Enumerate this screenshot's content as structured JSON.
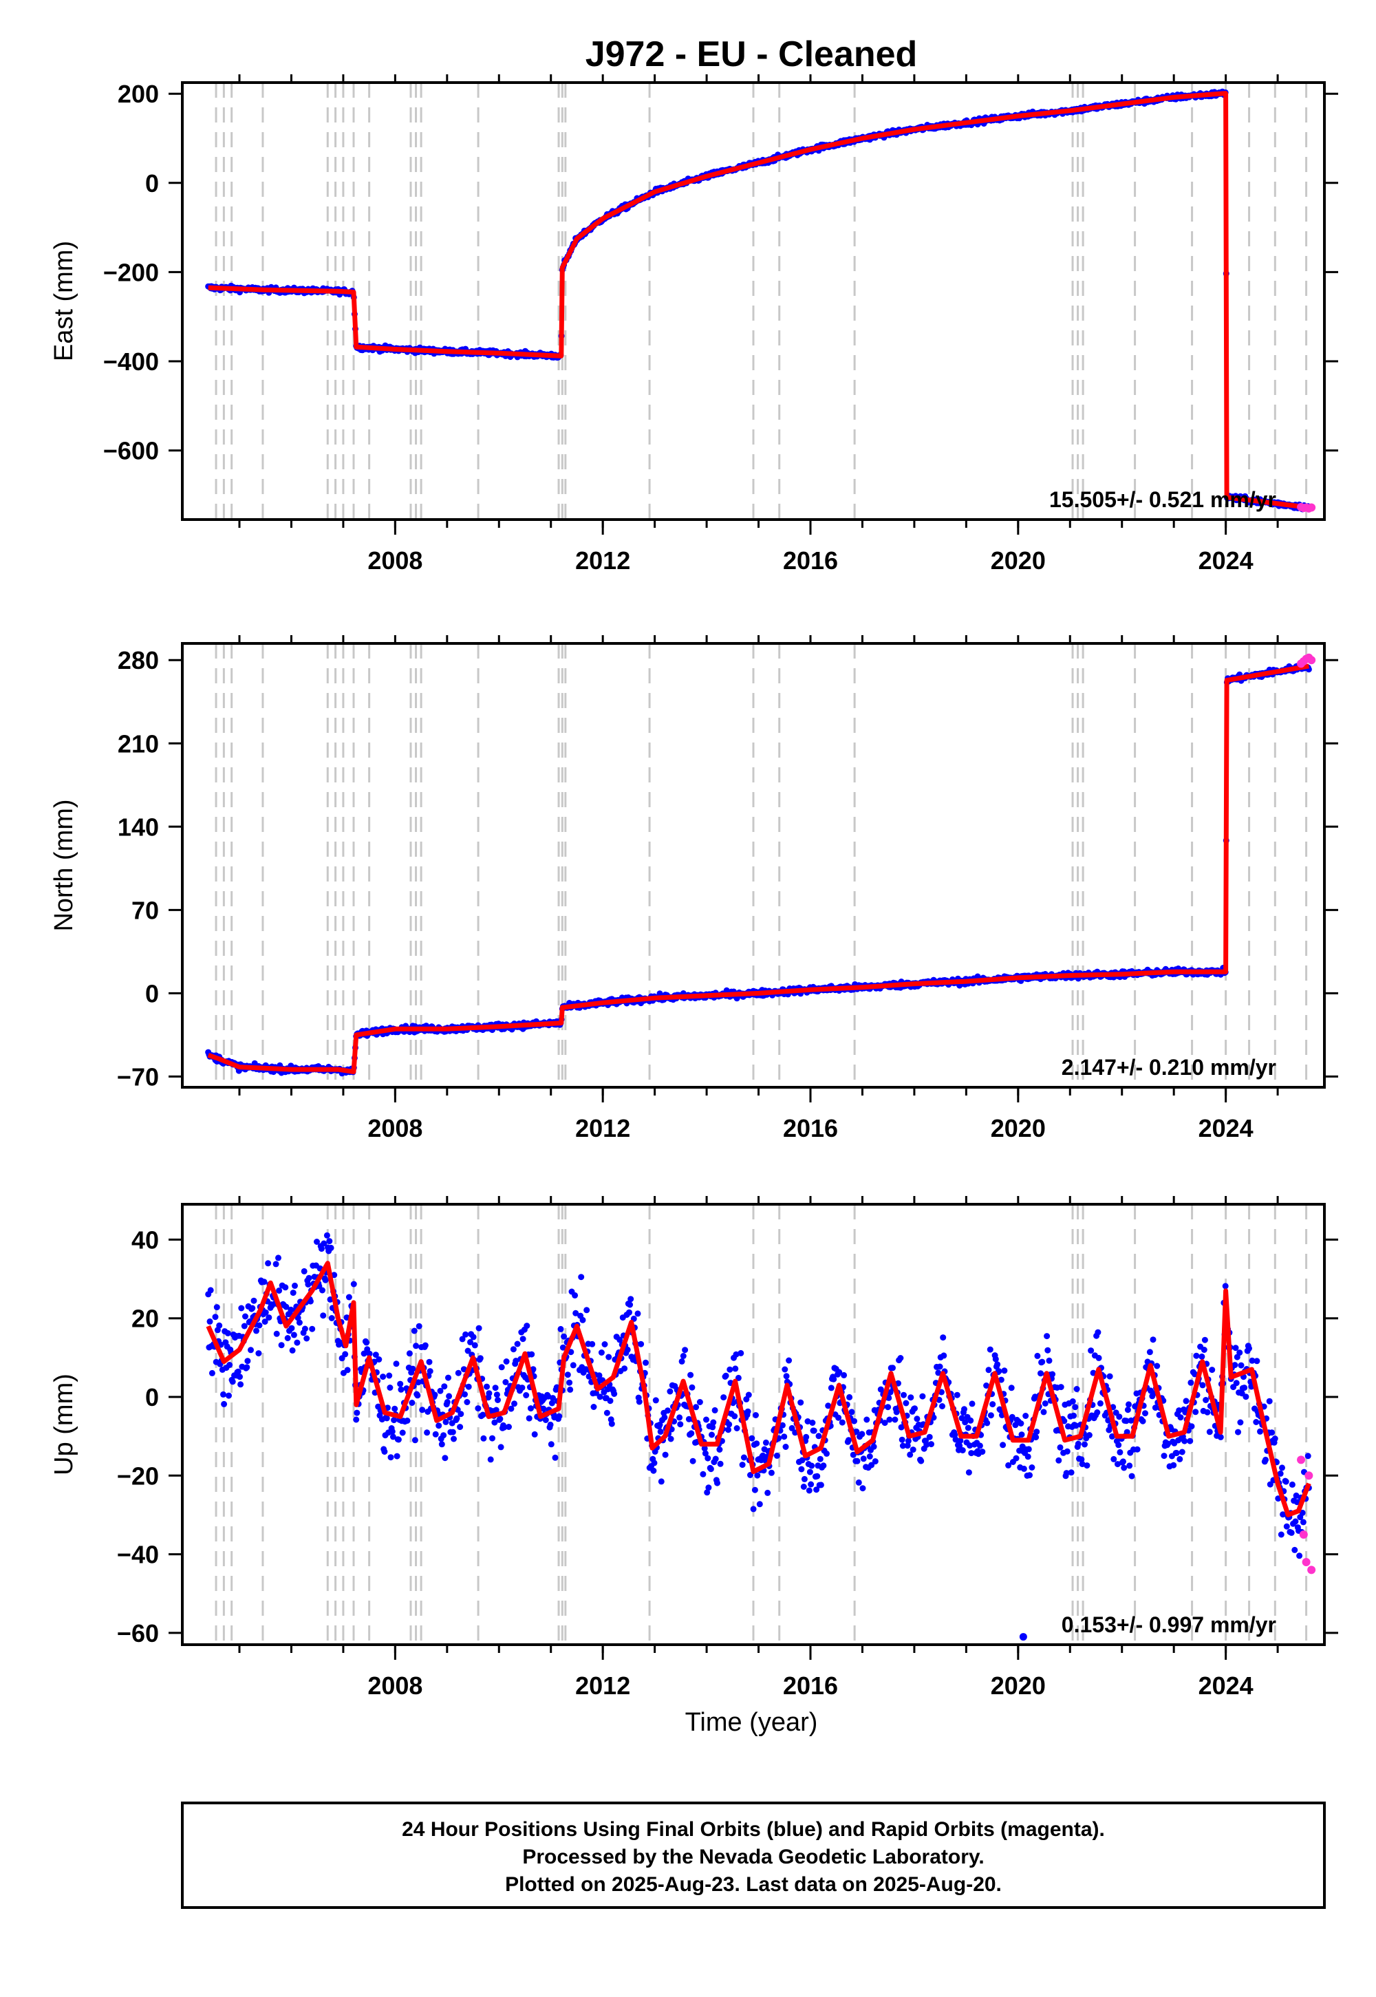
{
  "title": "J972  - EU - Cleaned",
  "xlabel": "Time (year)",
  "colors": {
    "final": "#0000ff",
    "rapid": "#ff33cc",
    "model": "#ff0000",
    "events": "#c8c8c8"
  },
  "chart_data": [
    {
      "type": "scatter",
      "panel": "east",
      "ylabel": "East (mm)",
      "rate": "15.505+/- 0.521 mm/yr",
      "xlim": [
        2003.9,
        2025.9
      ],
      "ylim": [
        -755,
        225
      ],
      "x_ticks": [
        "2008",
        "2012",
        "2016",
        "2020",
        "2024"
      ],
      "x_tick_values": [
        2008,
        2012,
        2016,
        2020,
        2024
      ],
      "y_ticks": [
        "200",
        "0",
        "−200",
        "−400",
        "−600"
      ],
      "y_tick_values": [
        200,
        0,
        -200,
        -400,
        -600
      ],
      "series": [
        {
          "type": "line",
          "x": [
            2004.4,
            2005.5,
            2006.9,
            2007.2,
            2007.25,
            2008.0,
            2009.0,
            2010.0,
            2011.2,
            2011.22,
            2011.5,
            2012.0,
            2013.0,
            2014.0,
            2015.0,
            2016.0,
            2017.0,
            2018.0,
            2019.0,
            2020.0,
            2021.0,
            2022.0,
            2023.0,
            2024.0,
            2024.02,
            2025.6
          ],
          "y": [
            -235,
            -240,
            -243,
            -245,
            -368,
            -373,
            -378,
            -382,
            -388,
            -190,
            -125,
            -80,
            -20,
            15,
            45,
            75,
            100,
            120,
            135,
            150,
            162,
            177,
            192,
            201,
            -705,
            -728
          ]
        },
        {
          "type": "rapid",
          "x": [
            2025.45,
            2025.5,
            2025.55,
            2025.6,
            2025.65
          ],
          "y": [
            -727,
            -729,
            -728,
            -730,
            -728
          ]
        }
      ]
    },
    {
      "type": "scatter",
      "panel": "north",
      "ylabel": "North (mm)",
      "rate": "2.147+/- 0.210 mm/yr",
      "xlim": [
        2003.9,
        2025.9
      ],
      "ylim": [
        -79,
        294
      ],
      "x_ticks": [
        "2008",
        "2012",
        "2016",
        "2020",
        "2024"
      ],
      "x_tick_values": [
        2008,
        2012,
        2016,
        2020,
        2024
      ],
      "y_ticks": [
        "280",
        "210",
        "140",
        "70",
        "0",
        "−70"
      ],
      "y_tick_values": [
        280,
        210,
        140,
        70,
        0,
        -70
      ],
      "series": [
        {
          "type": "line",
          "x": [
            2004.4,
            2004.6,
            2005.0,
            2006.0,
            2006.9,
            2007.2,
            2007.25,
            2008.0,
            2009.0,
            2010.0,
            2011.2,
            2011.22,
            2012.0,
            2013.0,
            2014.0,
            2015.0,
            2016.0,
            2017.0,
            2018.0,
            2019.0,
            2020.0,
            2021.0,
            2022.0,
            2023.0,
            2024.0,
            2024.02,
            2025.6
          ],
          "y": [
            -52,
            -55,
            -62,
            -64,
            -64,
            -66,
            -35,
            -30,
            -30,
            -28,
            -25,
            -12,
            -8,
            -4,
            -2,
            0,
            3,
            5,
            8,
            10,
            13,
            15,
            16,
            18,
            18,
            263,
            275
          ]
        },
        {
          "type": "rapid",
          "x": [
            2025.45,
            2025.5,
            2025.55,
            2025.6,
            2025.65
          ],
          "y": [
            277,
            279,
            281,
            282,
            280
          ]
        }
      ]
    },
    {
      "type": "scatter",
      "panel": "up",
      "ylabel": "Up (mm)",
      "rate": "0.153+/- 0.997 mm/yr",
      "xlim": [
        2003.9,
        2025.9
      ],
      "ylim": [
        -63,
        49
      ],
      "x_ticks": [
        "2008",
        "2012",
        "2016",
        "2020",
        "2024"
      ],
      "x_tick_values": [
        2008,
        2012,
        2016,
        2020,
        2024
      ],
      "y_ticks": [
        "40",
        "20",
        "0",
        "−20",
        "−40",
        "−60"
      ],
      "y_tick_values": [
        40,
        20,
        0,
        -20,
        -40,
        -60
      ],
      "series": [
        {
          "type": "line",
          "x": [
            2004.4,
            2004.7,
            2005.0,
            2005.4,
            2005.6,
            2005.9,
            2006.4,
            2006.7,
            2006.9,
            2007.05,
            2007.2,
            2007.25,
            2007.5,
            2007.8,
            2008.1,
            2008.5,
            2008.8,
            2009.1,
            2009.5,
            2009.8,
            2010.1,
            2010.5,
            2010.8,
            2011.15,
            2011.25,
            2011.5,
            2011.9,
            2012.2,
            2012.55,
            2012.8,
            2012.95,
            2013.2,
            2013.55,
            2013.9,
            2014.2,
            2014.55,
            2014.9,
            2015.2,
            2015.55,
            2015.9,
            2016.2,
            2016.55,
            2016.9,
            2017.2,
            2017.55,
            2017.9,
            2018.2,
            2018.55,
            2018.9,
            2019.2,
            2019.55,
            2019.9,
            2020.2,
            2020.55,
            2020.9,
            2021.2,
            2021.55,
            2021.9,
            2022.2,
            2022.55,
            2022.9,
            2023.2,
            2023.55,
            2023.9,
            2024.0,
            2024.1,
            2024.3,
            2024.5,
            2024.7,
            2025.0,
            2025.2,
            2025.4,
            2025.6
          ],
          "y": [
            18,
            9,
            12,
            22,
            29,
            18,
            27,
            34,
            20,
            13,
            24,
            -2,
            10,
            -4,
            -5,
            9,
            -6,
            -4,
            10,
            -5,
            -4,
            11,
            -5,
            -3,
            10,
            18,
            2,
            5,
            19,
            2,
            -13,
            -10,
            4,
            -12,
            -12,
            4,
            -19,
            -17,
            3,
            -15,
            -13,
            3,
            -14,
            -11,
            6,
            -10,
            -9,
            6,
            -10,
            -10,
            6,
            -11,
            -11,
            6,
            -11,
            -10,
            7,
            -10,
            -10,
            8,
            -10,
            -9,
            9,
            -9,
            27,
            5,
            6,
            7,
            -5,
            -22,
            -30,
            -29,
            -22
          ]
        },
        {
          "type": "rapid",
          "x": [
            2025.45,
            2025.5,
            2025.55,
            2025.6,
            2025.65
          ],
          "y": [
            -16,
            -35,
            -42,
            -20,
            -44
          ]
        },
        {
          "type": "outlier",
          "x": [
            2020.1
          ],
          "y": [
            -61
          ]
        }
      ]
    }
  ],
  "event_lines": [
    2004.55,
    2004.7,
    2004.85,
    2005.45,
    2006.7,
    2006.85,
    2007.0,
    2007.2,
    2007.5,
    2008.3,
    2008.4,
    2008.5,
    2009.6,
    2011.15,
    2011.22,
    2011.28,
    2012.9,
    2014.9,
    2015.4,
    2016.85,
    2021.05,
    2021.15,
    2021.25,
    2022.25,
    2023.35,
    2024.0,
    2024.45,
    2024.95,
    2025.55
  ],
  "footer": {
    "line1": "24 Hour Positions Using Final Orbits (blue) and Rapid Orbits (magenta).",
    "line2": "Processed by the Nevada Geodetic Laboratory.",
    "line3": "Plotted on 2025-Aug-23. Last data on 2025-Aug-20."
  }
}
